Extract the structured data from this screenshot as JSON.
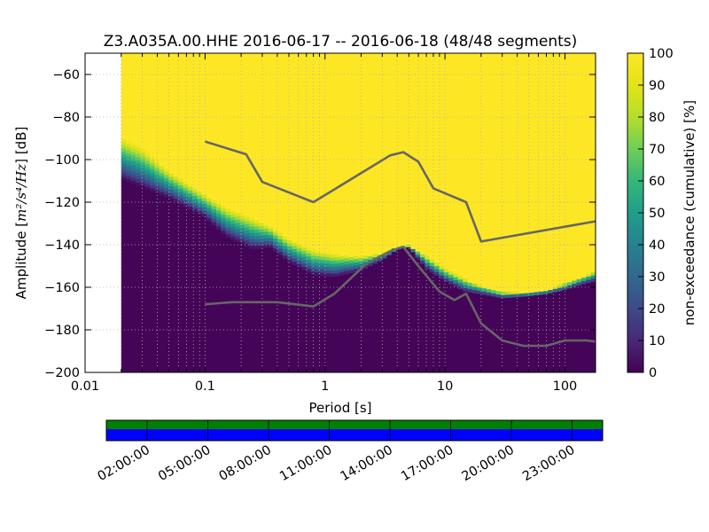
{
  "chart_data": {
    "type": "heatmap",
    "title": "Z3.A035A.00.HHE   2016-06-17 -- 2016-06-18  (48/48 segments)",
    "xlabel": "Period [s]",
    "ylabel_prefix": "Amplitude [",
    "ylabel_units": "m²/s⁴/Hz",
    "ylabel_suffix": "] [dB]",
    "xscale": "log",
    "xlim": [
      0.01,
      180
    ],
    "ylim": [
      -200,
      -50
    ],
    "xticks": [
      {
        "value": 0.01,
        "label": "0.01"
      },
      {
        "value": 0.1,
        "label": "0.1"
      },
      {
        "value": 1,
        "label": "1"
      },
      {
        "value": 10,
        "label": "10"
      },
      {
        "value": 100,
        "label": "100"
      }
    ],
    "yticks": [
      {
        "value": -60,
        "label": "−60"
      },
      {
        "value": -80,
        "label": "−80"
      },
      {
        "value": -100,
        "label": "−100"
      },
      {
        "value": -120,
        "label": "−120"
      },
      {
        "value": -140,
        "label": "−140"
      },
      {
        "value": -160,
        "label": "−160"
      },
      {
        "value": -180,
        "label": "−180"
      },
      {
        "value": -200,
        "label": "−200"
      }
    ],
    "grid": true,
    "data_min_period": 0.02,
    "colorbar": {
      "label": "non-exceedance (cumulative) [%]",
      "range": [
        0,
        100
      ],
      "ticks": [
        {
          "value": 0,
          "label": "0"
        },
        {
          "value": 10,
          "label": "10"
        },
        {
          "value": 20,
          "label": "20"
        },
        {
          "value": 30,
          "label": "30"
        },
        {
          "value": 40,
          "label": "40"
        },
        {
          "value": 50,
          "label": "50"
        },
        {
          "value": 60,
          "label": "60"
        },
        {
          "value": 70,
          "label": "70"
        },
        {
          "value": 80,
          "label": "80"
        },
        {
          "value": 90,
          "label": "90"
        },
        {
          "value": 100,
          "label": "100"
        }
      ]
    },
    "percentile_boundaries": {
      "period": [
        0.02,
        0.03,
        0.05,
        0.1,
        0.15,
        0.25,
        0.35,
        0.5,
        0.8,
        1.2,
        2,
        3,
        4,
        5,
        7,
        10,
        15,
        20,
        30,
        50,
        70,
        100,
        150,
        180
      ],
      "low": [
        -109,
        -113,
        -118,
        -127,
        -136,
        -142,
        -141,
        -148,
        -154,
        -155,
        -152,
        -147,
        -142,
        -141,
        -151,
        -157,
        -162,
        -163,
        -165,
        -164,
        -163,
        -161,
        -158,
        -157
      ],
      "high": [
        -89,
        -94,
        -105,
        -116,
        -122,
        -127,
        -131,
        -137,
        -142,
        -144,
        -145,
        -144,
        -141,
        -140,
        -145,
        -151,
        -156,
        -159,
        -162,
        -162,
        -161,
        -158,
        -154,
        -152
      ]
    },
    "series": [
      {
        "period": [
          0.1,
          0.22,
          0.3,
          0.8,
          3.5,
          4.5,
          6,
          8,
          15,
          20,
          180
        ],
        "values": [
          -91.5,
          -97.5,
          -110.5,
          -120,
          -98,
          -96.5,
          -101,
          -113.5,
          -120,
          -138.5,
          -129
        ]
      },
      {
        "period": [
          0.1,
          0.17,
          0.4,
          0.8,
          1.2,
          2.2,
          3.5,
          4.5,
          6,
          9,
          12,
          15,
          20,
          30,
          45,
          70,
          100,
          150,
          180
        ],
        "values": [
          -168,
          -167,
          -167,
          -169,
          -163,
          -149,
          -143,
          -141,
          -150,
          -162,
          -166,
          -163,
          -177,
          -185,
          -187.5,
          -187.5,
          -185,
          -185,
          -185.5
        ]
      }
    ],
    "data_availability": {
      "time_ticks": [
        "02:00:00",
        "05:00:00",
        "08:00:00",
        "11:00:00",
        "14:00:00",
        "17:00:00",
        "20:00:00",
        "23:00:00"
      ],
      "segments_used": 48,
      "segments_total": 48,
      "used_color": "#008000",
      "available_color": "#0000ff"
    },
    "colors": {
      "colormap": "viridis",
      "curve": "#666666",
      "grid": "#b0b0b0"
    }
  }
}
